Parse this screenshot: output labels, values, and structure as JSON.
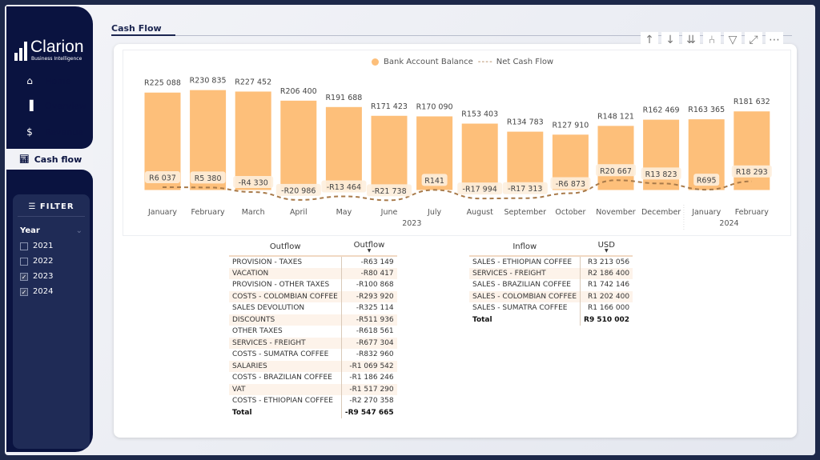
{
  "brand": {
    "name": "Clarion",
    "tagline": "Business Intelligence"
  },
  "nav": [
    {
      "label": "Home",
      "icon": "home-icon"
    },
    {
      "label": "Overview",
      "icon": "bar-chart-icon"
    },
    {
      "label": "Revenue",
      "icon": "dollar-icon"
    },
    {
      "label": "Cash flow",
      "icon": "chart-icon",
      "active": true
    }
  ],
  "filter": {
    "title": "FILTER",
    "field": "Year",
    "options": [
      {
        "label": "2021",
        "checked": false
      },
      {
        "label": "2022",
        "checked": false
      },
      {
        "label": "2023",
        "checked": true
      },
      {
        "label": "2024",
        "checked": true
      }
    ]
  },
  "page_title": "Cash Flow",
  "toolbar": [
    "sort-ascending",
    "sort-descending",
    "expand-all",
    "drill-down",
    "filter",
    "focus-mode",
    "more-options"
  ],
  "colors": {
    "bar": "#fdbf7a",
    "line": "#a87a4a",
    "sidebar": "#0a1340"
  },
  "chart_data": {
    "type": "bar+line",
    "legend": [
      "Bank Account Balance",
      "Net Cash Flow"
    ],
    "legend_position": "top-right",
    "categories": [
      "January",
      "February",
      "March",
      "April",
      "May",
      "June",
      "July",
      "August",
      "September",
      "October",
      "November",
      "December",
      "January",
      "February"
    ],
    "years": [
      {
        "label": "2023",
        "from": 0,
        "to": 11
      },
      {
        "label": "2024",
        "from": 12,
        "to": 13
      }
    ],
    "series": [
      {
        "name": "Bank Account Balance",
        "type": "bar",
        "values": [
          225088,
          230835,
          227452,
          206400,
          191688,
          171423,
          170090,
          153403,
          134783,
          127910,
          148121,
          162469,
          163365,
          181632
        ],
        "labels": [
          "R225 088",
          "R230 835",
          "R227 452",
          "R206 400",
          "R191 688",
          "R171 423",
          "R170 090",
          "R153 403",
          "R134 783",
          "R127 910",
          "R148 121",
          "R162 469",
          "R163 365",
          "R181 632"
        ]
      },
      {
        "name": "Net Cash Flow",
        "type": "line",
        "style": "dashed",
        "values": [
          6037,
          5380,
          -4330,
          -20986,
          -13464,
          -21738,
          141,
          -17994,
          -17313,
          -6873,
          20667,
          13823,
          695,
          18293
        ],
        "labels": [
          "R6 037",
          "R5 380",
          "-R4 330",
          "-R20 986",
          "-R13 464",
          "-R21 738",
          "R141",
          "-R17 994",
          "-R17 313",
          "-R6 873",
          "R20 667",
          "R13 823",
          "R695",
          "R18 293"
        ]
      }
    ],
    "grid": false
  },
  "outflow_table": {
    "headers": [
      "Outflow",
      "Outflow"
    ],
    "rows": [
      [
        "PROVISION - TAXES",
        "-R63 149"
      ],
      [
        "VACATION",
        "-R80 417"
      ],
      [
        "PROVISION - OTHER TAXES",
        "-R100 868"
      ],
      [
        "COSTS - COLOMBIAN COFFEE",
        "-R293 920"
      ],
      [
        "SALES DEVOLUTION",
        "-R325 114"
      ],
      [
        "DISCOUNTS",
        "-R511 936"
      ],
      [
        "OTHER TAXES",
        "-R618 561"
      ],
      [
        "SERVICES - FREIGHT",
        "-R677 304"
      ],
      [
        "COSTS - SUMATRA COFFEE",
        "-R832 960"
      ],
      [
        "SALARIES",
        "-R1 069 542"
      ],
      [
        "COSTS - BRAZILIAN COFFEE",
        "-R1 186 246"
      ],
      [
        "VAT",
        "-R1 517 290"
      ],
      [
        "COSTS - ETHIOPIAN COFFEE",
        "-R2 270 358"
      ]
    ],
    "total": [
      "Total",
      "-R9 547 665"
    ]
  },
  "inflow_table": {
    "headers": [
      "Inflow",
      "USD"
    ],
    "rows": [
      [
        "SALES - ETHIOPIAN COFFEE",
        "R3 213 056"
      ],
      [
        "SERVICES - FREIGHT",
        "R2 186 400"
      ],
      [
        "SALES - BRAZILIAN COFFEE",
        "R1 742 146"
      ],
      [
        "SALES - COLOMBIAN COFFEE",
        "R1 202 400"
      ],
      [
        "SALES - SUMATRA COFFEE",
        "R1 166 000"
      ]
    ],
    "total": [
      "Total",
      "R9 510 002"
    ]
  }
}
